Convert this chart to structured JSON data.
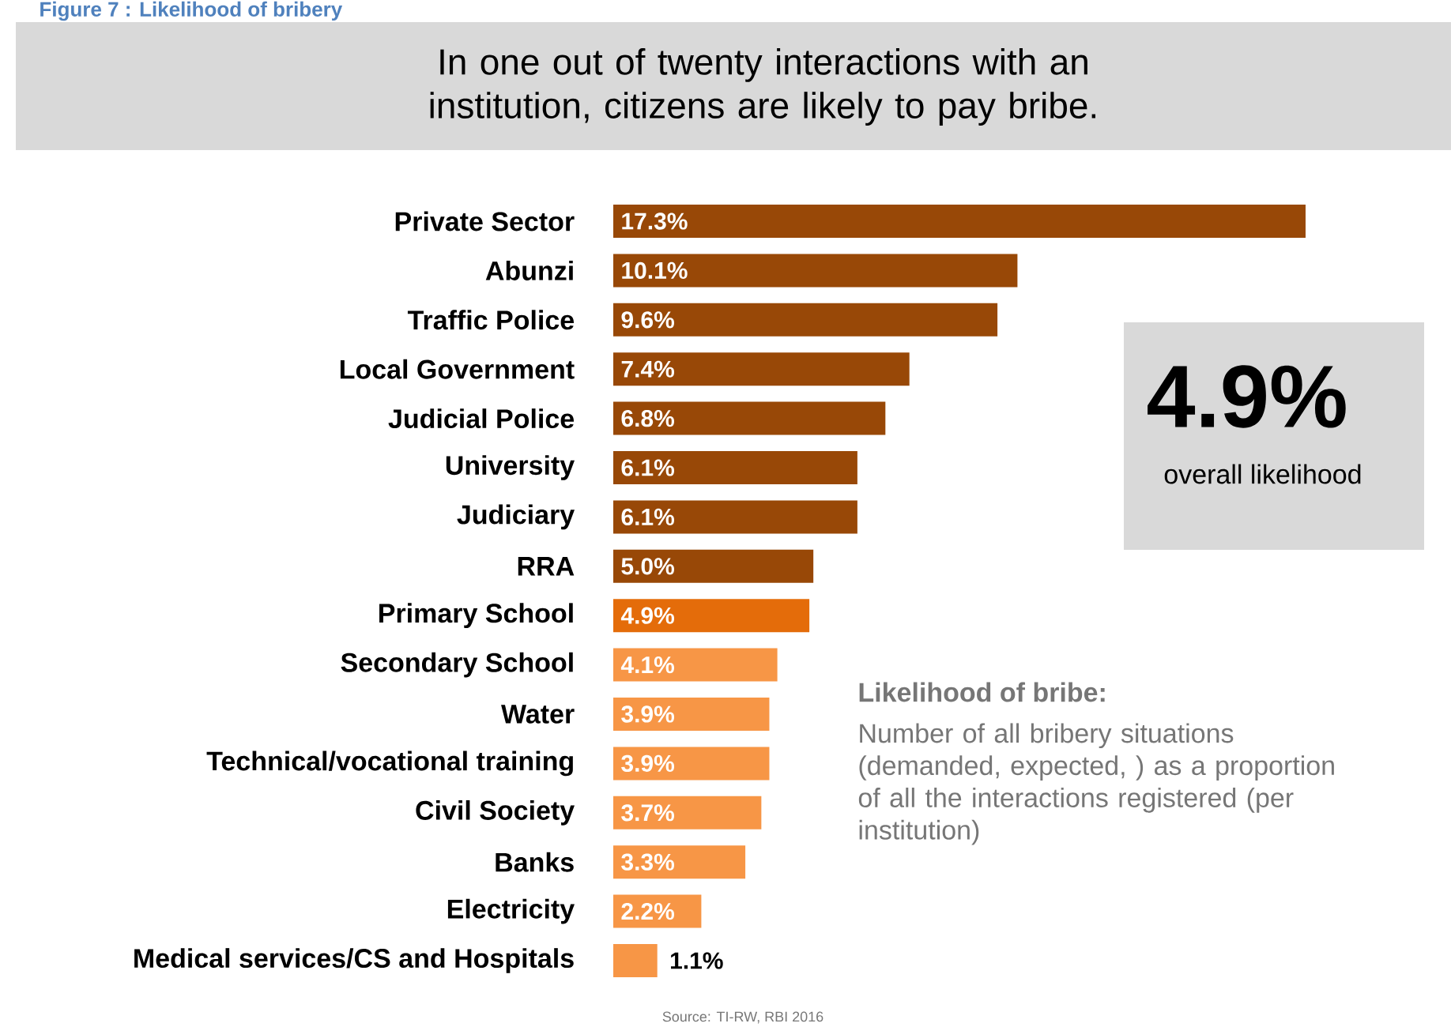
{
  "chart_data": {
    "type": "bar",
    "orientation": "horizontal",
    "title": "Figure 7 : Likelihood of bribery",
    "subtitle": "In one out of twenty interactions with an institution, citizens are likely to pay bribe.",
    "categories": [
      "Private Sector",
      "Abunzi",
      "Traffic Police",
      "Local Government",
      "Judicial Police",
      "University",
      "Judiciary",
      "RRA",
      "Primary School",
      "Secondary School",
      "Water",
      "Technical/vocational training",
      "Civil Society",
      "Banks",
      "Electricity",
      "Medical services/CS and Hospitals"
    ],
    "values": [
      17.3,
      10.1,
      9.6,
      7.4,
      6.8,
      6.1,
      6.1,
      5.0,
      4.9,
      4.1,
      3.9,
      3.9,
      3.7,
      3.3,
      2.2,
      1.1
    ],
    "value_labels": [
      "17.3%",
      "10.1%",
      "9.6%",
      "7.4%",
      "6.8%",
      "6.1%",
      "6.1%",
      "5.0%",
      "4.9%",
      "4.1%",
      "3.9%",
      "3.9%",
      "3.7%",
      "3.3%",
      "2.2%",
      "1.1%"
    ],
    "colors": [
      "#984807",
      "#984807",
      "#984807",
      "#984807",
      "#984807",
      "#984807",
      "#984807",
      "#984807",
      "#e46c0a",
      "#f79646",
      "#f79646",
      "#f79646",
      "#f79646",
      "#f79646",
      "#f79646",
      "#f79646"
    ],
    "annotations": [
      "4.9%",
      "overall likelihood",
      "Likelihood of bribe:",
      "Number of all bribery situations (demanded, expected, ) as a proportion of all the interactions registered (per institution)",
      "Source: TI-RW, RBI 2016"
    ]
  }
}
